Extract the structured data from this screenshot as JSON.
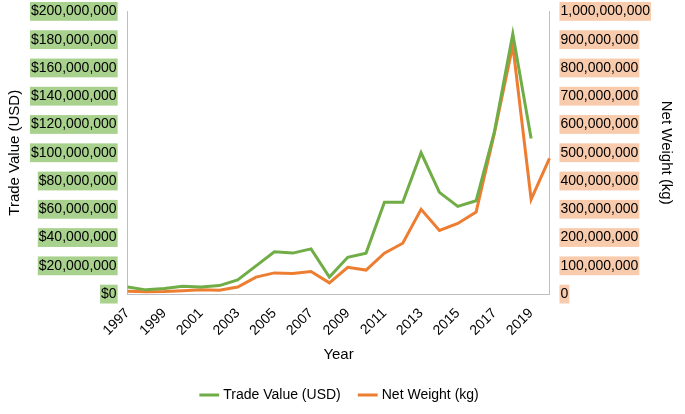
{
  "chart_data": {
    "type": "line",
    "x_label": "Year",
    "y_label": "Trade Value (USD)",
    "y2_label": "Net Weight (kg)",
    "categories": [
      "1997",
      null,
      "1999",
      null,
      "2001",
      null,
      "2003",
      null,
      "2005",
      null,
      "2007",
      null,
      "2009",
      null,
      "2011",
      null,
      "2013",
      null,
      "2015",
      null,
      "2017",
      null,
      "2019",
      null
    ],
    "series": [
      {
        "name": "Trade Value (USD)",
        "color": "#70ad47",
        "values": [
          5000000,
          3000000,
          4000000,
          5500000,
          5000000,
          6000000,
          10000000,
          20000000,
          30000000,
          29000000,
          32000000,
          12000000,
          26000000,
          29000000,
          65000000,
          65000000,
          100000000,
          72000000,
          62000000,
          66000000,
          115000000,
          184000000,
          110000000,
          null
        ]
      },
      {
        "name": "Net Weight (kg)",
        "color": "#ed7d31",
        "axis": "y2",
        "values": [
          10000000,
          8000000,
          9000000,
          12000000,
          15000000,
          14000000,
          25000000,
          60000000,
          75000000,
          73000000,
          80000000,
          40000000,
          95000000,
          85000000,
          145000000,
          180000000,
          300000000,
          225000000,
          250000000,
          290000000,
          570000000,
          880000000,
          335000000,
          480000000
        ]
      }
    ],
    "ylim": [
      0,
      200000000
    ],
    "yticks": [
      {
        "value": 0,
        "label": "$0"
      },
      {
        "value": 20000000,
        "label": "$20,000,000"
      },
      {
        "value": 40000000,
        "label": "$40,000,000"
      },
      {
        "value": 60000000,
        "label": "$60,000,000"
      },
      {
        "value": 80000000,
        "label": "$80,000,000"
      },
      {
        "value": 100000000,
        "label": "$100,000,000"
      },
      {
        "value": 120000000,
        "label": "$120,000,000"
      },
      {
        "value": 140000000,
        "label": "$140,000,000"
      },
      {
        "value": 160000000,
        "label": "$160,000,000"
      },
      {
        "value": 180000000,
        "label": "$180,000,000"
      },
      {
        "value": 200000000,
        "label": "$200,000,000"
      }
    ],
    "y2lim": [
      0,
      1000000000
    ],
    "y2ticks": [
      0,
      {
        "value": 100000000,
        "label": "100,000,000"
      },
      {
        "value": 200000000,
        "label": "200,000,000"
      },
      {
        "value": 300000000,
        "label": "300,000,000"
      },
      {
        "value": 400000000,
        "label": "400,000,000"
      },
      {
        "value": 500000000,
        "label": "500,000,000"
      },
      {
        "value": 600000000,
        "label": "600,000,000"
      },
      {
        "value": 700000000,
        "label": "700,000,000"
      },
      {
        "value": 800000000,
        "label": "800,000,000"
      },
      {
        "value": 900000000,
        "label": "900,000,000"
      },
      {
        "value": 1000000000,
        "label": "1,000,000,000"
      }
    ],
    "grid": false,
    "legend": "bottom"
  }
}
